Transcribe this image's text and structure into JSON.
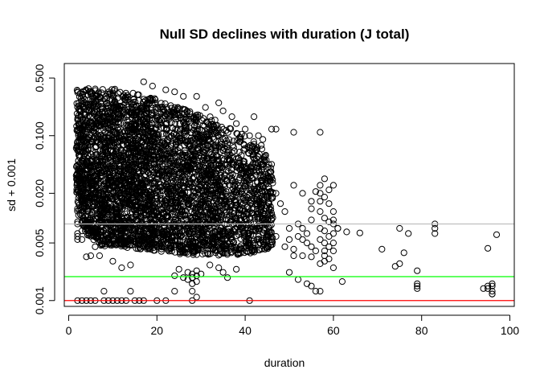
{
  "chart_data": {
    "type": "scatter",
    "title": "Null SD declines with duration (J total)",
    "xlabel": "duration",
    "ylabel": "sd + 0.001",
    "xlim": [
      -1,
      101
    ],
    "ylim": [
      0.00085,
      0.75
    ],
    "y_scale": "log",
    "x_ticks": [
      0,
      20,
      40,
      60,
      80,
      100
    ],
    "x_tick_labels": [
      "0",
      "20",
      "40",
      "60",
      "80",
      "100"
    ],
    "y_ticks": [
      0.001,
      0.005,
      0.02,
      0.1,
      0.5
    ],
    "y_tick_labels": [
      "0.001",
      "0.005",
      "0.020",
      "0.100",
      "0.500"
    ],
    "grid": false,
    "reference_lines": [
      {
        "y": 0.0085,
        "color": "#bebebe"
      },
      {
        "y": 0.00195,
        "color": "#00ff00"
      },
      {
        "y": 0.001,
        "color": "#ff0000"
      }
    ],
    "bulk_envelope": [
      {
        "x": 2,
        "low": 0.012,
        "high": 0.38
      },
      {
        "x": 4,
        "low": 0.006,
        "high": 0.38
      },
      {
        "x": 8,
        "low": 0.0045,
        "high": 0.38
      },
      {
        "x": 12,
        "low": 0.0045,
        "high": 0.36
      },
      {
        "x": 16,
        "low": 0.0042,
        "high": 0.32
      },
      {
        "x": 20,
        "low": 0.004,
        "high": 0.28
      },
      {
        "x": 24,
        "low": 0.0037,
        "high": 0.24
      },
      {
        "x": 28,
        "low": 0.0035,
        "high": 0.2
      },
      {
        "x": 32,
        "low": 0.0035,
        "high": 0.17
      },
      {
        "x": 36,
        "low": 0.0035,
        "high": 0.13
      },
      {
        "x": 40,
        "low": 0.0037,
        "high": 0.1
      },
      {
        "x": 44,
        "low": 0.004,
        "high": 0.075
      },
      {
        "x": 46,
        "low": 0.0045,
        "high": 0.04
      }
    ],
    "points": [
      [
        2,
        0.001
      ],
      [
        3,
        0.001
      ],
      [
        4,
        0.001
      ],
      [
        5,
        0.001
      ],
      [
        6,
        0.001
      ],
      [
        8,
        0.001
      ],
      [
        9,
        0.001
      ],
      [
        10,
        0.001
      ],
      [
        11,
        0.001
      ],
      [
        12,
        0.001
      ],
      [
        13,
        0.001
      ],
      [
        15,
        0.001
      ],
      [
        16,
        0.001
      ],
      [
        17,
        0.001
      ],
      [
        20,
        0.001
      ],
      [
        22,
        0.001
      ],
      [
        28,
        0.001
      ],
      [
        41,
        0.001
      ],
      [
        2,
        0.009
      ],
      [
        2,
        0.0085
      ],
      [
        2,
        0.0065
      ],
      [
        2,
        0.006
      ],
      [
        2,
        0.0055
      ],
      [
        3,
        0.007
      ],
      [
        3,
        0.0055
      ],
      [
        5,
        0.009
      ],
      [
        6,
        0.0045
      ],
      [
        5,
        0.0035
      ],
      [
        7,
        0.0035
      ],
      [
        4,
        0.0034
      ],
      [
        10,
        0.003
      ],
      [
        12,
        0.0025
      ],
      [
        14,
        0.0027
      ],
      [
        8,
        0.0013
      ],
      [
        14,
        0.0013
      ],
      [
        28,
        0.0019
      ],
      [
        28,
        0.0021
      ],
      [
        27,
        0.0022
      ],
      [
        29,
        0.002
      ],
      [
        29,
        0.0023
      ],
      [
        27,
        0.0018
      ],
      [
        28,
        0.0016
      ],
      [
        29,
        0.0017
      ],
      [
        26,
        0.0019
      ],
      [
        30,
        0.0021
      ],
      [
        25,
        0.0024
      ],
      [
        24,
        0.002
      ],
      [
        28,
        0.0013
      ],
      [
        29,
        0.0011
      ],
      [
        24,
        0.0013
      ],
      [
        34,
        0.0025
      ],
      [
        35,
        0.0022
      ],
      [
        38,
        0.0024
      ],
      [
        36,
        0.0019
      ],
      [
        32,
        0.0027
      ],
      [
        17,
        0.45
      ],
      [
        19,
        0.4
      ],
      [
        22,
        0.36
      ],
      [
        24,
        0.34
      ],
      [
        26,
        0.3
      ],
      [
        29,
        0.3
      ],
      [
        31,
        0.22
      ],
      [
        34,
        0.25
      ],
      [
        35,
        0.2
      ],
      [
        37,
        0.17
      ],
      [
        38,
        0.14
      ],
      [
        40,
        0.12
      ],
      [
        41,
        0.1
      ],
      [
        42,
        0.17
      ],
      [
        43,
        0.1
      ],
      [
        44,
        0.09
      ],
      [
        46,
        0.12
      ],
      [
        47,
        0.12
      ],
      [
        51,
        0.11
      ],
      [
        57,
        0.11
      ],
      [
        44,
        0.045
      ],
      [
        46,
        0.045
      ],
      [
        47,
        0.02
      ],
      [
        48,
        0.015
      ],
      [
        49,
        0.012
      ],
      [
        51,
        0.025
      ],
      [
        53,
        0.02
      ],
      [
        55,
        0.016
      ],
      [
        55,
        0.013
      ],
      [
        56,
        0.021
      ],
      [
        55,
        0.0095
      ],
      [
        50,
        0.0075
      ],
      [
        50,
        0.0055
      ],
      [
        52,
        0.0085
      ],
      [
        53,
        0.0075
      ],
      [
        54,
        0.0065
      ],
      [
        52,
        0.006
      ],
      [
        47,
        0.006
      ],
      [
        49,
        0.0045
      ],
      [
        51,
        0.0042
      ],
      [
        53,
        0.0035
      ],
      [
        53,
        0.0055
      ],
      [
        54,
        0.005
      ],
      [
        55,
        0.0045
      ],
      [
        56,
        0.004
      ],
      [
        55,
        0.0034
      ],
      [
        57,
        0.025
      ],
      [
        57,
        0.02
      ],
      [
        58,
        0.018
      ],
      [
        59,
        0.015
      ],
      [
        60,
        0.012
      ],
      [
        57,
        0.012
      ],
      [
        58,
        0.01
      ],
      [
        59,
        0.009
      ],
      [
        60,
        0.0085
      ],
      [
        57,
        0.0075
      ],
      [
        58,
        0.007
      ],
      [
        60,
        0.0065
      ],
      [
        59,
        0.006
      ],
      [
        57,
        0.0055
      ],
      [
        58,
        0.005
      ],
      [
        60,
        0.005
      ],
      [
        59,
        0.0045
      ],
      [
        58,
        0.004
      ],
      [
        60,
        0.004
      ],
      [
        58,
        0.0035
      ],
      [
        59,
        0.0032
      ],
      [
        58,
        0.003
      ],
      [
        57,
        0.0028
      ],
      [
        51,
        0.0035
      ],
      [
        50,
        0.0022
      ],
      [
        58,
        0.03
      ],
      [
        60,
        0.025
      ],
      [
        59,
        0.022
      ],
      [
        57,
        0.016
      ],
      [
        61,
        0.0075
      ],
      [
        60,
        0.0095
      ],
      [
        56,
        0.0013
      ],
      [
        60,
        0.0025
      ],
      [
        61,
        0.0075
      ],
      [
        63,
        0.0068
      ],
      [
        66,
        0.0066
      ],
      [
        75,
        0.0075
      ],
      [
        71,
        0.0042
      ],
      [
        76,
        0.0038
      ],
      [
        75,
        0.0028
      ],
      [
        74,
        0.0026
      ],
      [
        77,
        0.0065
      ],
      [
        79,
        0.0023
      ],
      [
        79,
        0.0016
      ],
      [
        79,
        0.0015
      ],
      [
        79,
        0.0014
      ],
      [
        83,
        0.0085
      ],
      [
        83,
        0.0075
      ],
      [
        83,
        0.0065
      ],
      [
        52,
        0.0018
      ],
      [
        54,
        0.0016
      ],
      [
        55,
        0.0015
      ],
      [
        57,
        0.0013
      ],
      [
        62,
        0.0017
      ],
      [
        95,
        0.0043
      ],
      [
        97,
        0.0063
      ],
      [
        95,
        0.0014
      ],
      [
        96,
        0.0013
      ],
      [
        96,
        0.0015
      ],
      [
        96,
        0.0016
      ],
      [
        96,
        0.0012
      ],
      [
        96,
        0.0012
      ],
      [
        95,
        0.0015
      ],
      [
        94,
        0.0014
      ]
    ]
  }
}
